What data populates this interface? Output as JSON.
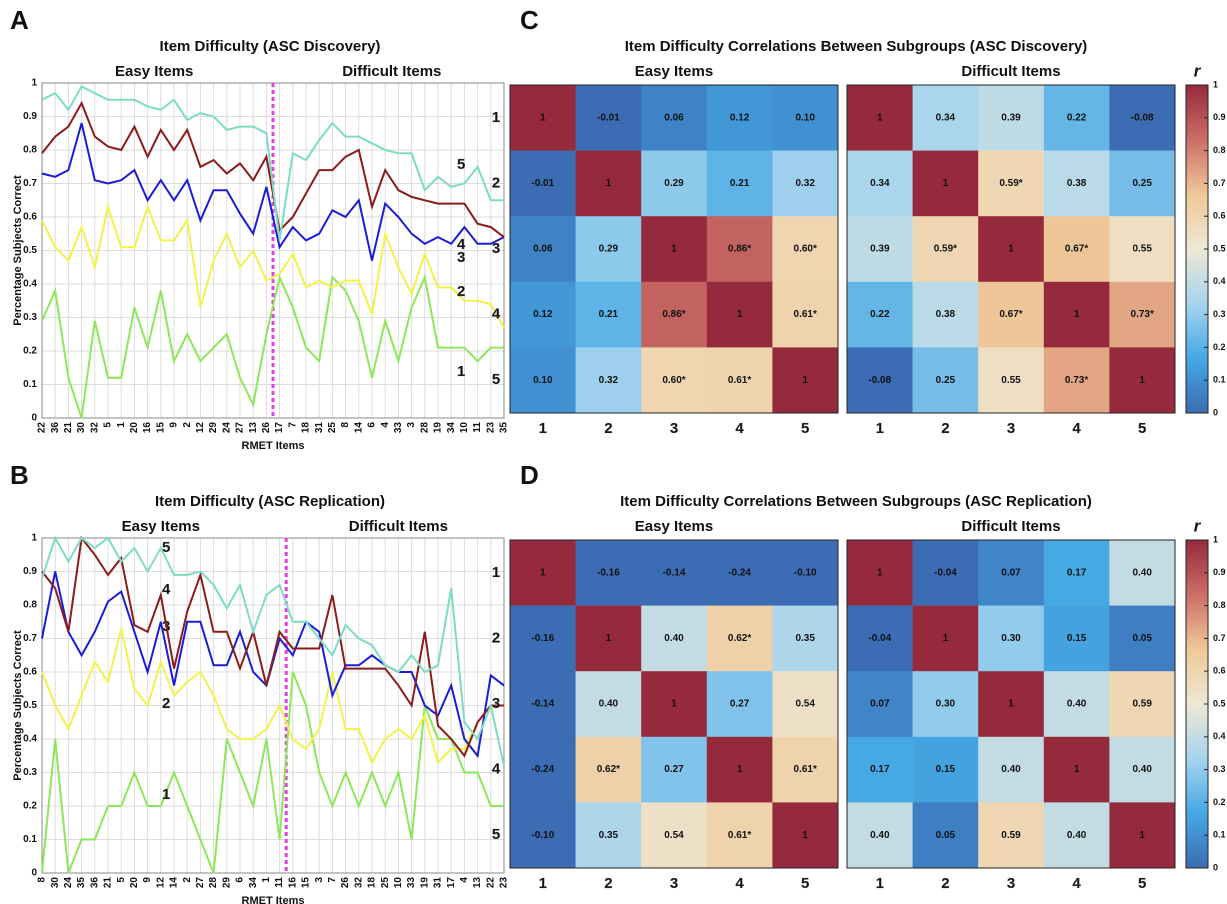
{
  "chart_data": [
    {
      "type": "line",
      "panel": "A",
      "title": "Item Difficulty (ASC Discovery)",
      "ylabel": "Percentage Subjects Correct",
      "xlabel": "RMET Items",
      "groups": [
        {
          "label": "Easy Items",
          "categories": [
            "22",
            "36",
            "21",
            "30",
            "32",
            "5",
            "1",
            "20",
            "16",
            "15",
            "9",
            "2",
            "12",
            "29",
            "24",
            "27",
            "13",
            "26"
          ]
        },
        {
          "label": "Difficult Items",
          "categories": [
            "17",
            "7",
            "18",
            "31",
            "25",
            "8",
            "14",
            "6",
            "4",
            "33",
            "3",
            "28",
            "19",
            "34",
            "10",
            "11",
            "23",
            "35"
          ]
        }
      ],
      "ylim": [
        0,
        1
      ],
      "yticks": [
        0,
        0.1,
        0.2,
        0.3,
        0.4,
        0.5,
        0.6,
        0.7,
        0.8,
        0.9,
        1
      ],
      "grid": true,
      "divider_color": "#e040e6",
      "series": [
        {
          "name": "1",
          "color": "#8ee65a",
          "values": [
            0.29,
            0.38,
            0.12,
            0.0,
            0.29,
            0.12,
            0.12,
            0.33,
            0.21,
            0.38,
            0.17,
            0.25,
            0.17,
            0.21,
            0.25,
            0.12,
            0.04,
            0.25,
            0.42,
            0.33,
            0.21,
            0.17,
            0.42,
            0.38,
            0.29,
            0.12,
            0.29,
            0.17,
            0.33,
            0.42,
            0.21,
            0.21,
            0.21,
            0.17,
            0.21,
            0.21
          ]
        },
        {
          "name": "2",
          "color": "#f2f24a",
          "values": [
            0.59,
            0.51,
            0.47,
            0.57,
            0.45,
            0.63,
            0.51,
            0.51,
            0.63,
            0.53,
            0.53,
            0.59,
            0.33,
            0.47,
            0.55,
            0.45,
            0.5,
            0.41,
            0.43,
            0.49,
            0.39,
            0.41,
            0.39,
            0.41,
            0.41,
            0.31,
            0.55,
            0.45,
            0.37,
            0.49,
            0.39,
            0.39,
            0.35,
            0.35,
            0.34,
            0.27
          ]
        },
        {
          "name": "3",
          "color": "#1c1cd8",
          "values": [
            0.73,
            0.72,
            0.74,
            0.88,
            0.71,
            0.7,
            0.71,
            0.74,
            0.65,
            0.71,
            0.65,
            0.71,
            0.59,
            0.68,
            0.68,
            0.61,
            0.55,
            0.69,
            0.51,
            0.57,
            0.53,
            0.55,
            0.62,
            0.6,
            0.65,
            0.47,
            0.64,
            0.6,
            0.55,
            0.52,
            0.54,
            0.52,
            0.57,
            0.52,
            0.52,
            0.54
          ]
        },
        {
          "name": "4",
          "color": "#8b1c1c",
          "values": [
            0.79,
            0.84,
            0.87,
            0.94,
            0.84,
            0.81,
            0.8,
            0.87,
            0.78,
            0.86,
            0.8,
            0.86,
            0.75,
            0.77,
            0.73,
            0.76,
            0.71,
            0.78,
            0.56,
            0.6,
            0.67,
            0.74,
            0.74,
            0.78,
            0.8,
            0.63,
            0.74,
            0.68,
            0.66,
            0.65,
            0.64,
            0.64,
            0.64,
            0.58,
            0.57,
            0.54
          ]
        },
        {
          "name": "5",
          "color": "#7ddcc4",
          "values": [
            0.95,
            0.97,
            0.92,
            0.99,
            0.97,
            0.95,
            0.95,
            0.95,
            0.93,
            0.92,
            0.95,
            0.89,
            0.91,
            0.9,
            0.86,
            0.87,
            0.87,
            0.85,
            0.53,
            0.79,
            0.77,
            0.83,
            0.88,
            0.84,
            0.84,
            0.82,
            0.8,
            0.79,
            0.79,
            0.68,
            0.72,
            0.69,
            0.7,
            0.75,
            0.65,
            0.65
          ]
        }
      ]
    },
    {
      "type": "line",
      "panel": "B",
      "title": "Item Difficulty (ASC Replication)",
      "ylabel": "Percentage Subjects Correct",
      "xlabel": "RMET Items",
      "groups": [
        {
          "label": "Easy Items",
          "categories": [
            "8",
            "30",
            "24",
            "35",
            "36",
            "21",
            "5",
            "20",
            "9",
            "12",
            "14",
            "2",
            "27",
            "28",
            "29",
            "6",
            "34",
            "1",
            "11"
          ]
        },
        {
          "label": "Difficult Items",
          "categories": [
            "16",
            "15",
            "3",
            "7",
            "26",
            "32",
            "18",
            "25",
            "10",
            "33",
            "19",
            "31",
            "17",
            "4",
            "13",
            "22",
            "23"
          ]
        }
      ],
      "ylim": [
        0,
        1
      ],
      "yticks": [
        0,
        0.1,
        0.2,
        0.3,
        0.4,
        0.5,
        0.6,
        0.7,
        0.8,
        0.9,
        1
      ],
      "grid": true,
      "divider_color": "#e040e6",
      "series": [
        {
          "name": "1",
          "color": "#8ee65a",
          "values": [
            0.0,
            0.4,
            0.0,
            0.1,
            0.1,
            0.2,
            0.2,
            0.3,
            0.2,
            0.2,
            0.3,
            0.2,
            0.1,
            0.0,
            0.4,
            0.3,
            0.2,
            0.4,
            0.1,
            0.6,
            0.5,
            0.3,
            0.2,
            0.3,
            0.2,
            0.3,
            0.2,
            0.3,
            0.1,
            0.5,
            0.4,
            0.4,
            0.3,
            0.3,
            0.2,
            0.2
          ]
        },
        {
          "name": "2",
          "color": "#f2f24a",
          "values": [
            0.6,
            0.5,
            0.43,
            0.53,
            0.63,
            0.57,
            0.73,
            0.55,
            0.5,
            0.63,
            0.53,
            0.57,
            0.6,
            0.53,
            0.43,
            0.4,
            0.4,
            0.43,
            0.5,
            0.4,
            0.37,
            0.43,
            0.6,
            0.43,
            0.43,
            0.33,
            0.4,
            0.43,
            0.4,
            0.47,
            0.33,
            0.37,
            0.37,
            0.45,
            0.5,
            0.5
          ]
        },
        {
          "name": "3",
          "color": "#1c1cd8",
          "values": [
            0.7,
            0.9,
            0.72,
            0.65,
            0.72,
            0.81,
            0.84,
            0.72,
            0.6,
            0.75,
            0.56,
            0.75,
            0.75,
            0.62,
            0.62,
            0.72,
            0.6,
            0.56,
            0.7,
            0.65,
            0.75,
            0.72,
            0.53,
            0.62,
            0.62,
            0.65,
            0.62,
            0.6,
            0.6,
            0.5,
            0.47,
            0.56,
            0.4,
            0.35,
            0.59,
            0.56
          ]
        },
        {
          "name": "4",
          "color": "#8b1c1c",
          "values": [
            0.9,
            0.85,
            0.72,
            1.0,
            0.95,
            0.89,
            0.94,
            0.74,
            0.72,
            0.83,
            0.61,
            0.78,
            0.89,
            0.72,
            0.72,
            0.61,
            0.72,
            0.56,
            0.72,
            0.67,
            0.67,
            0.67,
            0.83,
            0.61,
            0.61,
            0.61,
            0.61,
            0.56,
            0.5,
            0.72,
            0.44,
            0.4,
            0.35,
            0.45,
            0.5,
            0.5
          ]
        },
        {
          "name": "5",
          "color": "#7ddcc4",
          "values": [
            0.88,
            1.0,
            0.93,
            1.0,
            0.97,
            1.0,
            0.93,
            0.97,
            0.9,
            0.97,
            0.89,
            0.89,
            0.9,
            0.86,
            0.79,
            0.86,
            0.72,
            0.83,
            0.86,
            0.75,
            0.75,
            0.7,
            0.65,
            0.74,
            0.7,
            0.68,
            0.62,
            0.6,
            0.65,
            0.6,
            0.62,
            0.85,
            0.45,
            0.4,
            0.5,
            0.32
          ]
        }
      ]
    },
    {
      "type": "heatmap",
      "panel": "C",
      "title": "Item Difficulty Correlations Between Subgroups (ASC Discovery)",
      "categories": [
        "1",
        "2",
        "3",
        "4",
        "5"
      ],
      "category_colors": [
        "#8ee65a",
        "#f2f24a",
        "#1c1cd8",
        "#8b1c1c",
        "#7ddcc4"
      ],
      "colormap": [
        "#3b6cb4",
        "#45a8e4",
        "#a6d4ee",
        "#eee8d4",
        "#efc898",
        "#cc6e66",
        "#962a3d"
      ],
      "colorbar_label": "r",
      "clim": [
        0,
        1
      ],
      "cticks": [
        0,
        0.1,
        0.2,
        0.3,
        0.4,
        0.5,
        0.6,
        0.7,
        0.8,
        0.9,
        1
      ],
      "matrices": [
        {
          "subtitle": "Easy Items",
          "values": [
            [
              1,
              -0.01,
              0.06,
              0.12,
              0.1
            ],
            [
              -0.01,
              1,
              0.29,
              0.21,
              0.32
            ],
            [
              0.06,
              0.29,
              1,
              0.86,
              0.6
            ],
            [
              0.12,
              0.21,
              0.86,
              1,
              0.61
            ],
            [
              0.1,
              0.32,
              0.6,
              0.61,
              1
            ]
          ],
          "value_labels": [
            [
              "1",
              "-0.01",
              "0.06",
              "0.12",
              "0.10"
            ],
            [
              "-0.01",
              "1",
              "0.29",
              "0.21",
              "0.32"
            ],
            [
              "0.06",
              "0.29",
              "1",
              "0.86*",
              "0.60*"
            ],
            [
              "0.12",
              "0.21",
              "0.86*",
              "1",
              "0.61*"
            ],
            [
              "0.10",
              "0.32",
              "0.60*",
              "0.61*",
              "1"
            ]
          ]
        },
        {
          "subtitle": "Difficult Items",
          "values": [
            [
              1,
              0.34,
              0.39,
              0.22,
              -0.08
            ],
            [
              0.34,
              1,
              0.59,
              0.38,
              0.25
            ],
            [
              0.39,
              0.59,
              1,
              0.67,
              0.55
            ],
            [
              0.22,
              0.38,
              0.67,
              1,
              0.73
            ],
            [
              -0.08,
              0.25,
              0.55,
              0.73,
              1
            ]
          ],
          "value_labels": [
            [
              "1",
              "0.34",
              "0.39",
              "0.22",
              "-0.08"
            ],
            [
              "0.34",
              "1",
              "0.59*",
              "0.38",
              "0.25"
            ],
            [
              "0.39",
              "0.59*",
              "1",
              "0.67*",
              "0.55"
            ],
            [
              "0.22",
              "0.38",
              "0.67*",
              "1",
              "0.73*"
            ],
            [
              "-0.08",
              "0.25",
              "0.55",
              "0.73*",
              "1"
            ]
          ]
        }
      ]
    },
    {
      "type": "heatmap",
      "panel": "D",
      "title": "Item Difficulty Correlations Between Subgroups (ASC Replication)",
      "categories": [
        "1",
        "2",
        "3",
        "4",
        "5"
      ],
      "category_colors": [
        "#8ee65a",
        "#f2f24a",
        "#1c1cd8",
        "#8b1c1c",
        "#7ddcc4"
      ],
      "colormap": [
        "#3b6cb4",
        "#45a8e4",
        "#a6d4ee",
        "#eee8d4",
        "#efc898",
        "#cc6e66",
        "#962a3d"
      ],
      "colorbar_label": "r",
      "clim": [
        0,
        1
      ],
      "cticks": [
        0,
        0.1,
        0.2,
        0.3,
        0.4,
        0.5,
        0.6,
        0.7,
        0.8,
        0.9,
        1
      ],
      "matrices": [
        {
          "subtitle": "Easy Items",
          "values": [
            [
              1,
              -0.16,
              -0.14,
              -0.24,
              -0.1
            ],
            [
              -0.16,
              1,
              0.4,
              0.62,
              0.35
            ],
            [
              -0.14,
              0.4,
              1,
              0.27,
              0.54
            ],
            [
              -0.24,
              0.62,
              0.27,
              1,
              0.61
            ],
            [
              -0.1,
              0.35,
              0.54,
              0.61,
              1
            ]
          ],
          "value_labels": [
            [
              "1",
              "-0.16",
              "-0.14",
              "-0.24",
              "-0.10"
            ],
            [
              "-0.16",
              "1",
              "0.40",
              "0.62*",
              "0.35"
            ],
            [
              "-0.14",
              "0.40",
              "1",
              "0.27",
              "0.54"
            ],
            [
              "-0.24",
              "0.62*",
              "0.27",
              "1",
              "0.61*"
            ],
            [
              "-0.10",
              "0.35",
              "0.54",
              "0.61*",
              "1"
            ]
          ]
        },
        {
          "subtitle": "Difficult Items",
          "values": [
            [
              1,
              -0.04,
              0.07,
              0.17,
              0.4
            ],
            [
              -0.04,
              1,
              0.3,
              0.15,
              0.05
            ],
            [
              0.07,
              0.3,
              1,
              0.4,
              0.59
            ],
            [
              0.17,
              0.15,
              0.4,
              1,
              0.4
            ],
            [
              0.4,
              0.05,
              0.59,
              0.4,
              1
            ]
          ],
          "value_labels": [
            [
              "1",
              "-0.04",
              "0.07",
              "0.17",
              "0.40"
            ],
            [
              "-0.04",
              "1",
              "0.30",
              "0.15",
              "0.05"
            ],
            [
              "0.07",
              "0.30",
              "1",
              "0.40",
              "0.59"
            ],
            [
              "0.17",
              "0.15",
              "0.40",
              "1",
              "0.40"
            ],
            [
              "0.40",
              "0.05",
              "0.59",
              "0.40",
              "1"
            ]
          ]
        }
      ]
    }
  ]
}
